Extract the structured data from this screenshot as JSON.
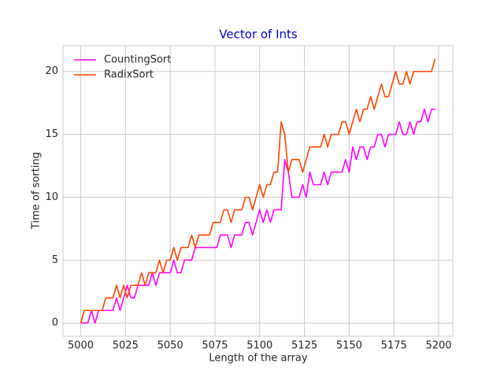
{
  "chart_data": {
    "type": "line",
    "title": "Vector of Ints",
    "x_label": "Length of the array",
    "y_label": "Time of sorting",
    "x": [
      5000,
      5002,
      5004,
      5006,
      5008,
      5010,
      5012,
      5014,
      5016,
      5018,
      5020,
      5022,
      5024,
      5026,
      5028,
      5030,
      5032,
      5034,
      5036,
      5038,
      5040,
      5042,
      5044,
      5046,
      5048,
      5050,
      5052,
      5054,
      5056,
      5058,
      5060,
      5062,
      5064,
      5066,
      5068,
      5070,
      5072,
      5074,
      5076,
      5078,
      5080,
      5082,
      5084,
      5086,
      5088,
      5090,
      5092,
      5094,
      5096,
      5098,
      5100,
      5102,
      5104,
      5106,
      5108,
      5110,
      5112,
      5114,
      5116,
      5118,
      5120,
      5122,
      5124,
      5126,
      5128,
      5130,
      5132,
      5134,
      5136,
      5138,
      5140,
      5142,
      5144,
      5146,
      5148,
      5150,
      5152,
      5154,
      5156,
      5158,
      5160,
      5162,
      5164,
      5166,
      5168,
      5170,
      5172,
      5174,
      5176,
      5178,
      5180,
      5182,
      5184,
      5186,
      5188,
      5190,
      5192,
      5194,
      5196,
      5198
    ],
    "series": [
      {
        "name": "CountingSort",
        "color": "#ff00ff",
        "values": [
          0,
          0,
          0,
          1,
          0,
          1,
          1,
          1,
          1,
          1,
          2,
          1,
          2,
          3,
          2,
          2,
          3,
          3,
          3,
          3,
          4,
          3,
          4,
          4,
          4,
          4,
          5,
          4,
          4,
          5,
          5,
          5,
          6,
          6,
          6,
          6,
          6,
          6,
          6,
          7,
          7,
          7,
          6,
          7,
          7,
          7,
          8,
          8,
          7,
          8,
          9,
          8,
          9,
          8,
          9,
          9,
          9,
          13,
          12,
          10,
          10,
          10,
          11,
          10,
          12,
          11,
          11,
          11,
          12,
          11,
          12,
          12,
          12,
          12,
          13,
          12,
          14,
          13,
          14,
          14,
          13,
          14,
          14,
          15,
          15,
          14,
          15,
          15,
          15,
          16,
          15,
          15,
          16,
          15,
          16,
          16,
          17,
          16,
          17,
          17
        ]
      },
      {
        "name": "RadixSort",
        "color": "#ff4500",
        "values": [
          0,
          1,
          1,
          1,
          1,
          1,
          1,
          2,
          2,
          2,
          3,
          2,
          3,
          2,
          3,
          3,
          3,
          4,
          3,
          4,
          4,
          4,
          5,
          4,
          5,
          5,
          6,
          5,
          6,
          6,
          6,
          7,
          6,
          7,
          7,
          7,
          7,
          8,
          8,
          8,
          9,
          9,
          8,
          9,
          9,
          9,
          10,
          10,
          9,
          10,
          11,
          10,
          11,
          11,
          12,
          12,
          16,
          15,
          12,
          13,
          13,
          13,
          12,
          13,
          14,
          14,
          14,
          14,
          15,
          14,
          15,
          15,
          15,
          16,
          16,
          15,
          16,
          17,
          16,
          17,
          17,
          18,
          17,
          18,
          19,
          18,
          18,
          19,
          20,
          19,
          19,
          20,
          19,
          20,
          20,
          20,
          20,
          20,
          20,
          21
        ]
      }
    ],
    "xlim": [
      4990.1,
      5207.9
    ],
    "ylim": [
      -1.05,
      22.05
    ],
    "xticks": [
      5000,
      5025,
      5050,
      5075,
      5100,
      5125,
      5150,
      5175,
      5200
    ],
    "yticks": [
      0,
      5,
      10,
      15,
      20
    ],
    "grid": true,
    "legend": "upper left"
  }
}
